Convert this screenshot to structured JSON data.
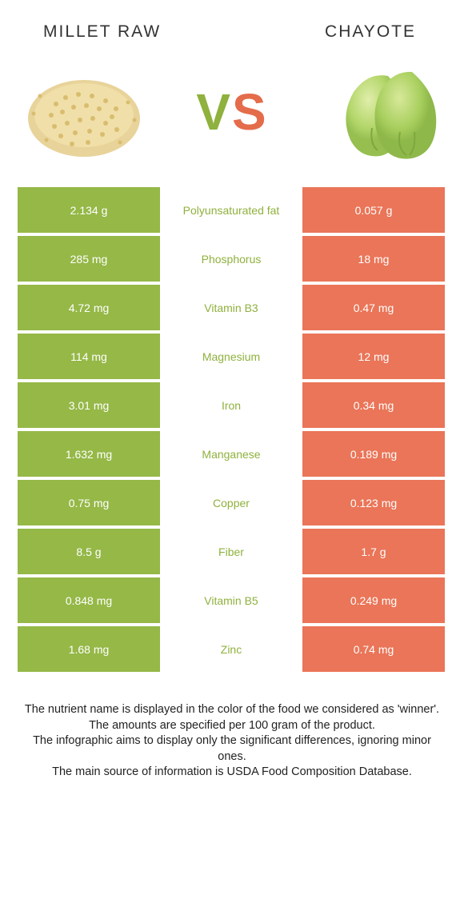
{
  "colors": {
    "left_bg": "#95b847",
    "right_bg": "#ea7558",
    "winner_left": "#8fb13d",
    "winner_right": "#e46c4b",
    "text_white": "#ffffff",
    "body_text": "#222222"
  },
  "header": {
    "left_title": "Millet raw",
    "right_title": "Chayote",
    "vs_v": "V",
    "vs_s": "S"
  },
  "rows": [
    {
      "left": "2.134 g",
      "label": "Polyunsaturated fat",
      "right": "0.057 g",
      "winner": "left"
    },
    {
      "left": "285 mg",
      "label": "Phosphorus",
      "right": "18 mg",
      "winner": "left"
    },
    {
      "left": "4.72 mg",
      "label": "Vitamin B3",
      "right": "0.47 mg",
      "winner": "left"
    },
    {
      "left": "114 mg",
      "label": "Magnesium",
      "right": "12 mg",
      "winner": "left"
    },
    {
      "left": "3.01 mg",
      "label": "Iron",
      "right": "0.34 mg",
      "winner": "left"
    },
    {
      "left": "1.632 mg",
      "label": "Manganese",
      "right": "0.189 mg",
      "winner": "left"
    },
    {
      "left": "0.75 mg",
      "label": "Copper",
      "right": "0.123 mg",
      "winner": "left"
    },
    {
      "left": "8.5 g",
      "label": "Fiber",
      "right": "1.7 g",
      "winner": "left"
    },
    {
      "left": "0.848 mg",
      "label": "Vitamin B5",
      "right": "0.249 mg",
      "winner": "left"
    },
    {
      "left": "1.68 mg",
      "label": "Zinc",
      "right": "0.74 mg",
      "winner": "left"
    }
  ],
  "footer": {
    "line1": "The nutrient name is displayed in the color of the food we considered as 'winner'.",
    "line2": "The amounts are specified per 100 gram of the product.",
    "line3": "The infographic aims to display only the significant differences, ignoring minor ones.",
    "line4": "The main source of information is USDA Food Composition Database."
  }
}
